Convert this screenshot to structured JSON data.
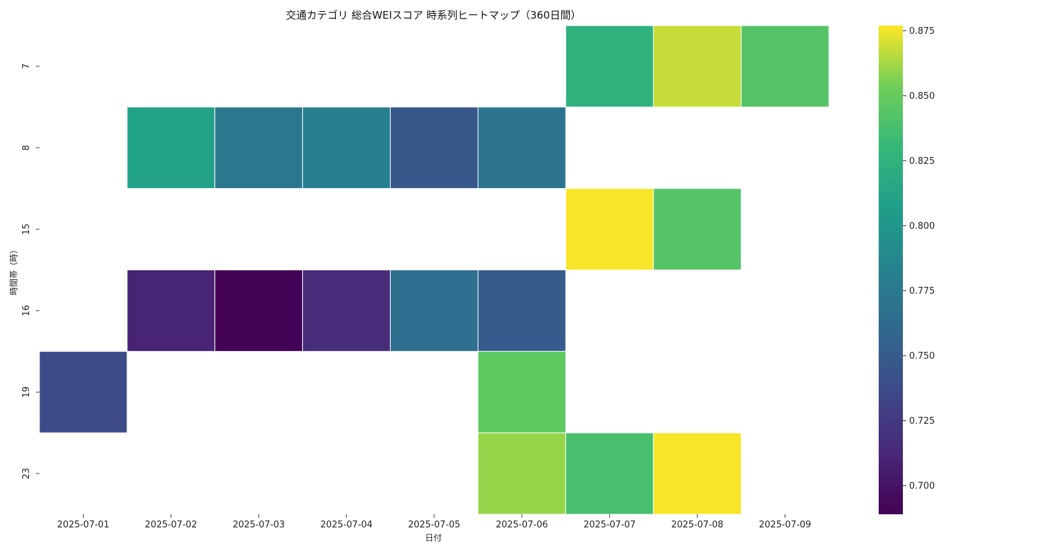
{
  "chart_data": {
    "type": "heatmap",
    "title": "交通カテゴリ 総合WEIスコア 時系列ヒートマップ（360日間）",
    "xlabel": "日付",
    "ylabel": "時間帯（時）",
    "x": [
      "2025-07-01",
      "2025-07-02",
      "2025-07-03",
      "2025-07-04",
      "2025-07-05",
      "2025-07-06",
      "2025-07-07",
      "2025-07-08",
      "2025-07-09"
    ],
    "y": [
      "7",
      "8",
      "15",
      "16",
      "19",
      "23"
    ],
    "values": [
      [
        null,
        null,
        null,
        null,
        null,
        null,
        0.825,
        0.868,
        0.843
      ],
      [
        null,
        0.81,
        0.773,
        0.78,
        0.747,
        0.77,
        null,
        null,
        null
      ],
      [
        null,
        null,
        null,
        null,
        null,
        null,
        0.876,
        0.843,
        null
      ],
      [
        null,
        0.71,
        0.69,
        0.715,
        0.765,
        0.75,
        null,
        null,
        null
      ],
      [
        0.738,
        null,
        null,
        null,
        null,
        0.847,
        null,
        null,
        null
      ],
      [
        null,
        null,
        null,
        null,
        null,
        0.86,
        0.838,
        0.876,
        null
      ]
    ],
    "colorscale": "viridis",
    "vmin": 0.689,
    "vmax": 0.877,
    "colorbar_ticks": [
      "0.700",
      "0.725",
      "0.750",
      "0.775",
      "0.800",
      "0.825",
      "0.850",
      "0.875"
    ],
    "grid": false,
    "legend": "colorbar-right"
  }
}
